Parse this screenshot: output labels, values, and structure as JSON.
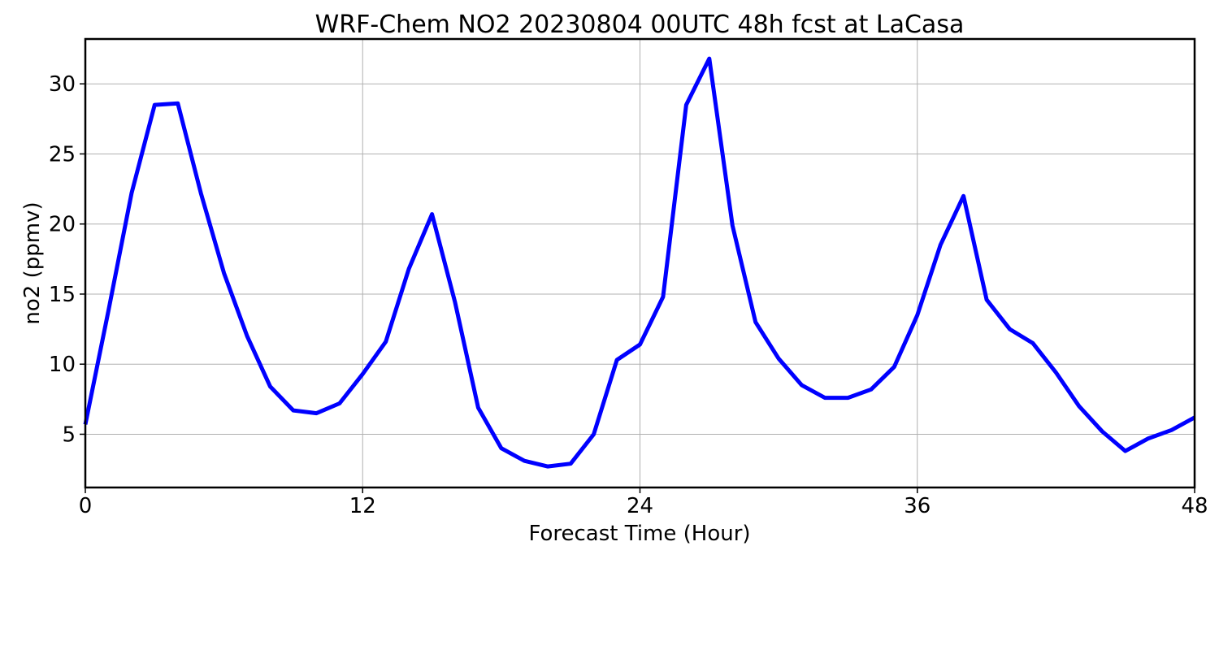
{
  "chart_data": {
    "type": "line",
    "title": "WRF-Chem NO2  20230804 00UTC 48h fcst at LaCasa",
    "xlabel": "Forecast Time (Hour)",
    "ylabel": "no2  (ppmv)",
    "xlim": [
      0,
      48
    ],
    "ylim": [
      1.2,
      33.2
    ],
    "xticks": [
      0,
      12,
      24,
      36,
      48
    ],
    "yticks": [
      5,
      10,
      15,
      20,
      25,
      30
    ],
    "grid": true,
    "line_color": "#0000ff",
    "series": [
      {
        "x": [
          0,
          1,
          2,
          3,
          4,
          5,
          6,
          7,
          8,
          9,
          10,
          11,
          12,
          13,
          14,
          15,
          16,
          17,
          18,
          19,
          20,
          21,
          22,
          23,
          24,
          25,
          26,
          27,
          28,
          29,
          30,
          31,
          32,
          33,
          34,
          35,
          36,
          37,
          38,
          39,
          40,
          41,
          42,
          43,
          44,
          45,
          46,
          47,
          48
        ],
        "values": [
          5.7,
          13.8,
          22.2,
          28.5,
          28.6,
          22.2,
          16.5,
          12.0,
          8.4,
          6.7,
          6.5,
          7.2,
          9.3,
          11.6,
          16.8,
          20.7,
          14.4,
          6.9,
          4.0,
          3.1,
          2.7,
          2.9,
          5.0,
          10.3,
          11.4,
          14.8,
          28.5,
          31.8,
          19.9,
          13.0,
          10.4,
          8.5,
          7.6,
          7.6,
          8.2,
          9.8,
          13.5,
          18.5,
          22.0,
          14.6,
          12.5,
          11.5,
          9.4,
          7.0,
          5.2,
          3.8,
          4.7,
          5.3,
          6.2
        ]
      }
    ]
  }
}
